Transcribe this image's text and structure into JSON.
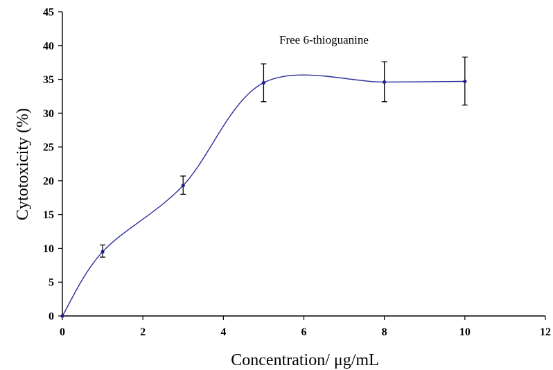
{
  "chart_data": {
    "type": "line",
    "annotation": "Free 6-thioguanine",
    "xlabel": "Concentration/ μg/mL",
    "ylabel": "Cytotoxicity (%)",
    "xlim": [
      0,
      12
    ],
    "ylim": [
      0,
      45
    ],
    "x_ticks": [
      "0",
      "2",
      "4",
      "6",
      "8",
      "10",
      "12"
    ],
    "y_ticks": [
      "0",
      "5",
      "10",
      "15",
      "20",
      "25",
      "30",
      "35",
      "40",
      "45"
    ],
    "grid": false,
    "smooth": true,
    "series": [
      {
        "color": "#2b2b9a",
        "x": [
          0,
          1,
          3,
          5,
          8,
          10
        ],
        "y": [
          0,
          9.5,
          19.3,
          34.5,
          34.6,
          34.7
        ],
        "err_upper": [
          0,
          10.5,
          20.7,
          37.3,
          37.6,
          38.3
        ],
        "err_lower": [
          0,
          8.7,
          18.0,
          31.7,
          31.7,
          31.2
        ]
      }
    ]
  }
}
